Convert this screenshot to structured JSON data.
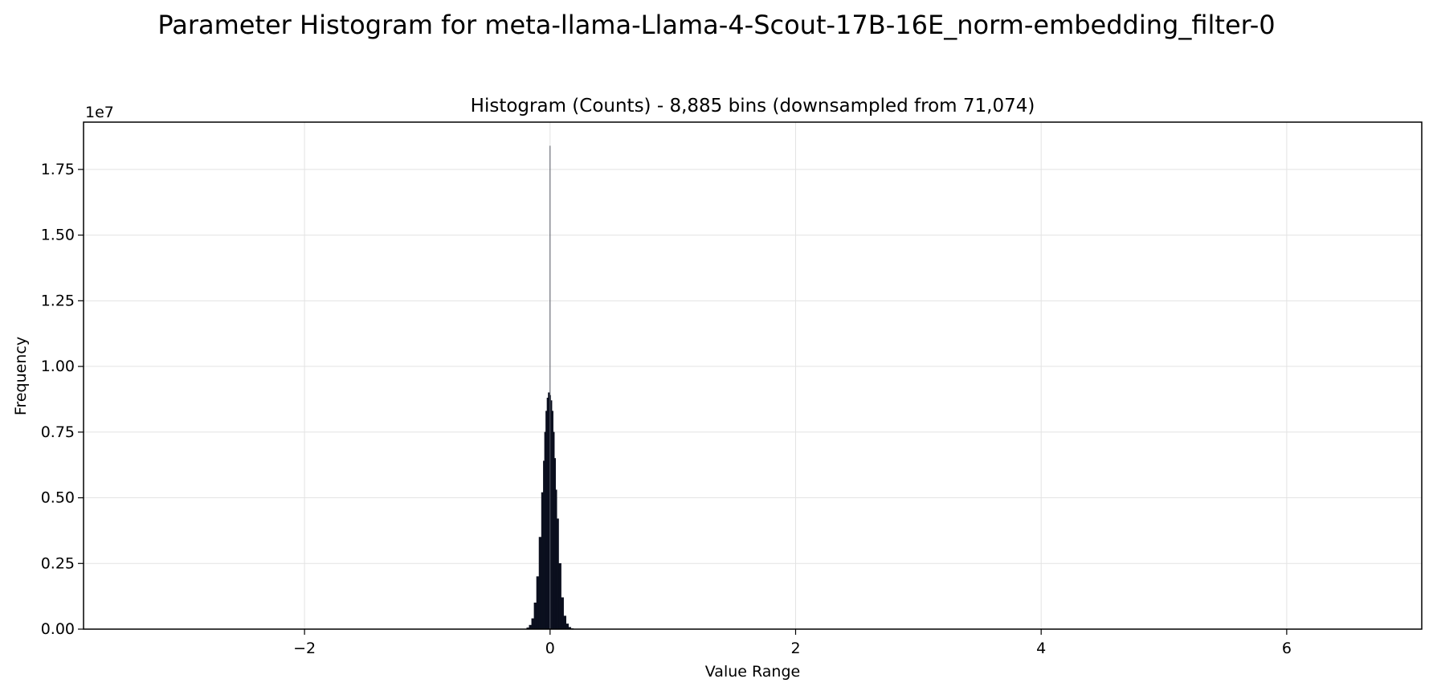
{
  "figure": {
    "suptitle": "Parameter Histogram for meta-llama-Llama-4-Scout-17B-16E_norm-embedding_filter-0"
  },
  "chart_data": {
    "type": "bar",
    "title": "Histogram (Counts) - 8,885 bins (downsampled from 71,074)",
    "xlabel": "Value Range",
    "ylabel": "Frequency",
    "y_offset_label": "1e7",
    "xlim": [
      -3.8,
      7.1
    ],
    "ylim": [
      0,
      19300000
    ],
    "x_ticks": [
      -2,
      0,
      2,
      4,
      6
    ],
    "x_tick_labels": [
      "−2",
      "0",
      "2",
      "4",
      "6"
    ],
    "y_ticks": [
      0,
      2500000,
      5000000,
      7500000,
      10000000,
      12500000,
      15000000,
      17500000
    ],
    "y_tick_labels": [
      "0.00",
      "0.25",
      "0.50",
      "0.75",
      "1.00",
      "1.25",
      "1.50",
      "1.75"
    ],
    "grid": true,
    "bar_color": "#0b0f1e",
    "spike": {
      "x": 0.0,
      "value": 18400000
    },
    "series": [
      {
        "x": [
          -0.18,
          -0.16,
          -0.14,
          -0.12,
          -0.1,
          -0.08,
          -0.06,
          -0.05,
          -0.04,
          -0.03,
          -0.02,
          -0.01,
          0.0,
          0.01,
          0.02,
          0.03,
          0.04,
          0.05,
          0.06,
          0.08,
          0.1,
          0.12,
          0.14,
          0.16,
          0.18
        ],
        "values": [
          50000,
          150000,
          400000,
          1000000,
          2000000,
          3500000,
          5200000,
          6400000,
          7500000,
          8300000,
          8800000,
          9000000,
          8900000,
          8700000,
          8300000,
          7500000,
          6500000,
          5300000,
          4200000,
          2500000,
          1200000,
          500000,
          200000,
          70000,
          20000
        ]
      }
    ]
  }
}
